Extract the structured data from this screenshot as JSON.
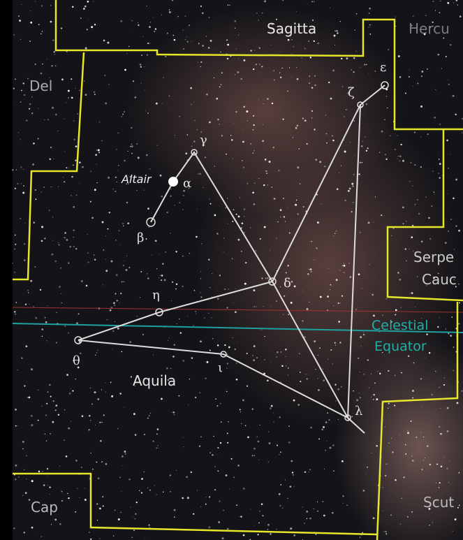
{
  "constellations": {
    "sagitta": "Sagitta",
    "hercules": "Hercu",
    "delphinus": "Del",
    "aquila": "Aquila",
    "serpens_1": "Serpe",
    "serpens_2": "Cauc",
    "capricornus": "Cap",
    "scutum": "Scut"
  },
  "stars": {
    "altair": "Altair",
    "alpha": "α",
    "beta": "β",
    "gamma": "γ",
    "delta": "δ",
    "epsilon": "ε",
    "zeta": "ζ",
    "eta": "η",
    "theta": "θ",
    "iota": "ι",
    "lambda": "λ"
  },
  "equator": {
    "line1": "Celestial",
    "line2": "Equator"
  }
}
